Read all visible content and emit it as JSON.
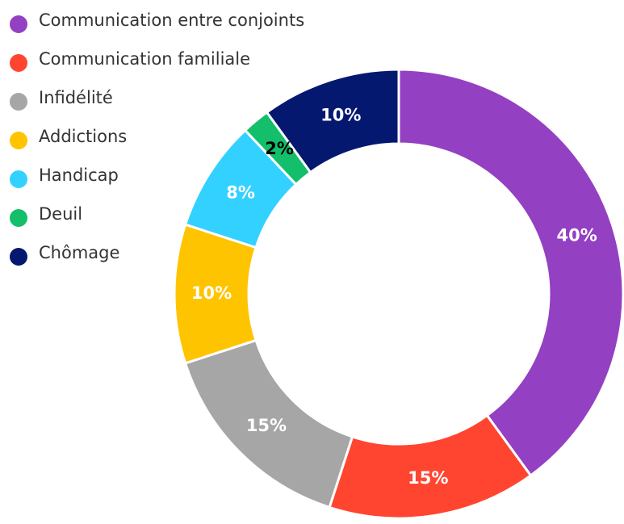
{
  "chart_data": {
    "type": "donut",
    "categories": [
      "Communication entre conjoints",
      "Communication familiale",
      "Infidélité",
      "Addictions",
      "Handicap",
      "Deuil",
      "Chômage"
    ],
    "values": [
      40,
      15,
      15,
      10,
      8,
      2,
      10
    ],
    "value_labels": [
      "40%",
      "15%",
      "15%",
      "10%",
      "8%",
      "2%",
      "10%"
    ],
    "colors": [
      "#9440c2",
      "#ff4530",
      "#a6a6a6",
      "#ffc400",
      "#33d1ff",
      "#13bf6a",
      "#041870"
    ],
    "label_colors": [
      "#ffffff",
      "#ffffff",
      "#ffffff",
      "#ffffff",
      "#ffffff",
      "#000000",
      "#ffffff"
    ],
    "legend": "top-left"
  }
}
